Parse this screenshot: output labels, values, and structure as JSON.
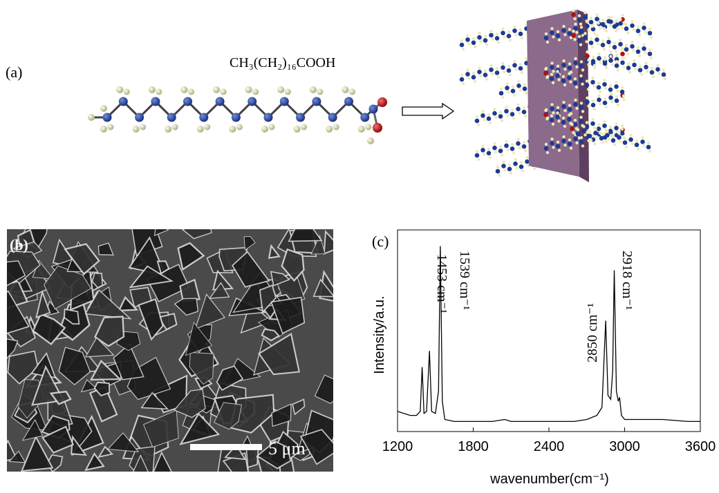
{
  "panels": {
    "a": {
      "label": "(a)",
      "formula": "CH₃(CH₂)₁₆COOH"
    },
    "b": {
      "label": "(b)",
      "scale_bar": "5 μm"
    },
    "c": {
      "label": "(c)"
    }
  },
  "chart_data": {
    "type": "line",
    "x_label": "wavenumber(cm⁻¹)",
    "y_label": "Intensity/a.u.",
    "x": [
      1200,
      1250,
      1300,
      1350,
      1380,
      1395,
      1410,
      1430,
      1453,
      1470,
      1500,
      1525,
      1539,
      1555,
      1575,
      1650,
      1800,
      1950,
      2050,
      2100,
      2250,
      2400,
      2600,
      2700,
      2780,
      2820,
      2850,
      2868,
      2890,
      2905,
      2918,
      2935,
      2950,
      2960,
      2975,
      3000,
      3100,
      3300,
      3500,
      3600
    ],
    "values": [
      10,
      9,
      8,
      8,
      10,
      32,
      9,
      10,
      40,
      10,
      9,
      20,
      92,
      15,
      6,
      5,
      5,
      5,
      6,
      5,
      5,
      5,
      5,
      6,
      8,
      12,
      55,
      18,
      16,
      30,
      80,
      20,
      15,
      17,
      8,
      6,
      6,
      6,
      5,
      5
    ],
    "color": "#000000",
    "xlim": [
      1200,
      3600
    ],
    "xticks": [
      1200,
      1800,
      2400,
      3000,
      3600
    ],
    "ylim": [
      0,
      100
    ],
    "annotations": [
      "1453 cm⁻¹",
      "1539 cm⁻¹",
      "2850 cm⁻¹",
      "2918 cm⁻¹"
    ]
  }
}
